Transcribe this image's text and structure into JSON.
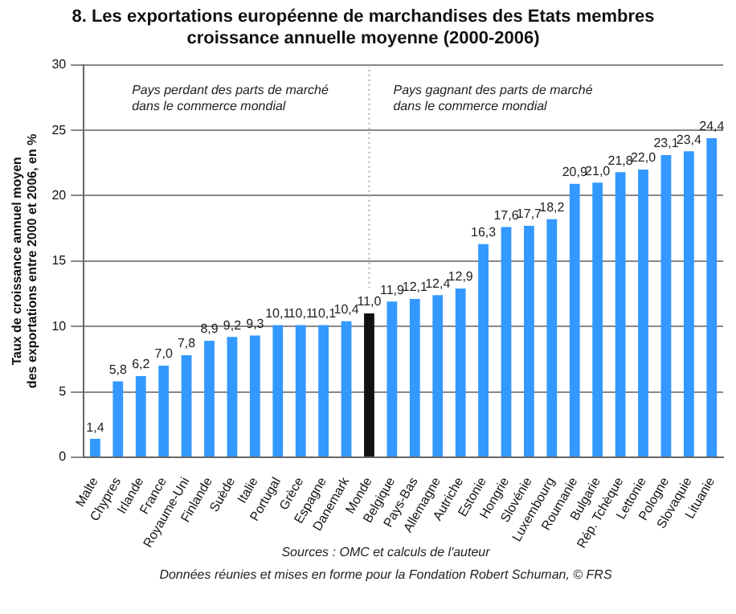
{
  "chart_data": {
    "type": "bar",
    "title": "8. Les exportations européenne de marchandises des Etats membres\ncroissance annuelle moyenne (2000-2006)",
    "ylabel": "Taux de croissance annuel moyen\ndes exportations entre 2000 et 2006, en %",
    "categories": [
      "Malte",
      "Chypres",
      "Irlande",
      "France",
      "Royaume-Uni",
      "Finlande",
      "Suède",
      "Italie",
      "Portugal",
      "Grèce",
      "Espagne",
      "Danemark",
      "Monde",
      "Belgique",
      "Pays-Bas",
      "Allemagne",
      "Autriche",
      "Estonie",
      "Hongrie",
      "Slovénie",
      "Luxembourg",
      "Roumanie",
      "Bulgarie",
      "Rép. Tchèque",
      "Lettonie",
      "Pologne",
      "Slovaquie",
      "Lituanie"
    ],
    "values": [
      1.4,
      5.8,
      6.2,
      7.0,
      7.8,
      8.9,
      9.2,
      9.3,
      10.1,
      10.1,
      10.1,
      10.4,
      11.0,
      11.9,
      12.1,
      12.4,
      12.9,
      16.3,
      17.6,
      17.7,
      18.2,
      20.9,
      21.0,
      21.8,
      22.0,
      23.1,
      23.4,
      24.4
    ],
    "value_labels": [
      "1,4",
      "5,8",
      "6,2",
      "7,0",
      "7,8",
      "8,9",
      "9,2",
      "9,3",
      "10,1",
      "10,1",
      "10,1",
      "10,4",
      "11,0",
      "11,9",
      "12,1",
      "12,4",
      "12,9",
      "16,3",
      "17,6",
      "17,7",
      "18,2",
      "20,9",
      "21,0",
      "21,8",
      "22,0",
      "23,1",
      "23,4",
      "24,4"
    ],
    "colors": [
      "#3399ff",
      "#3399ff",
      "#3399ff",
      "#3399ff",
      "#3399ff",
      "#3399ff",
      "#3399ff",
      "#3399ff",
      "#3399ff",
      "#3399ff",
      "#3399ff",
      "#3399ff",
      "#111111",
      "#3399ff",
      "#3399ff",
      "#3399ff",
      "#3399ff",
      "#3399ff",
      "#3399ff",
      "#3399ff",
      "#3399ff",
      "#3399ff",
      "#3399ff",
      "#3399ff",
      "#3399ff",
      "#3399ff",
      "#3399ff",
      "#3399ff"
    ],
    "ylim": [
      0,
      30
    ],
    "yticks": [
      0,
      5,
      10,
      15,
      20,
      25,
      30
    ],
    "grid": "y",
    "ref_lines": [
      {
        "axis": "x",
        "value": "Monde",
        "color": "#aaaaaa",
        "line_style": "dotted"
      }
    ],
    "annotations": [
      "Pays perdant des parts de marché\ndans le commerce mondial",
      "Pays gagnant des parts de marché\ndans le commerce mondial",
      "Sources : OMC et calculs de l'auteur",
      "Données réunies et mises en forme pour la Fondation Robert Schuman, © FRS"
    ]
  }
}
